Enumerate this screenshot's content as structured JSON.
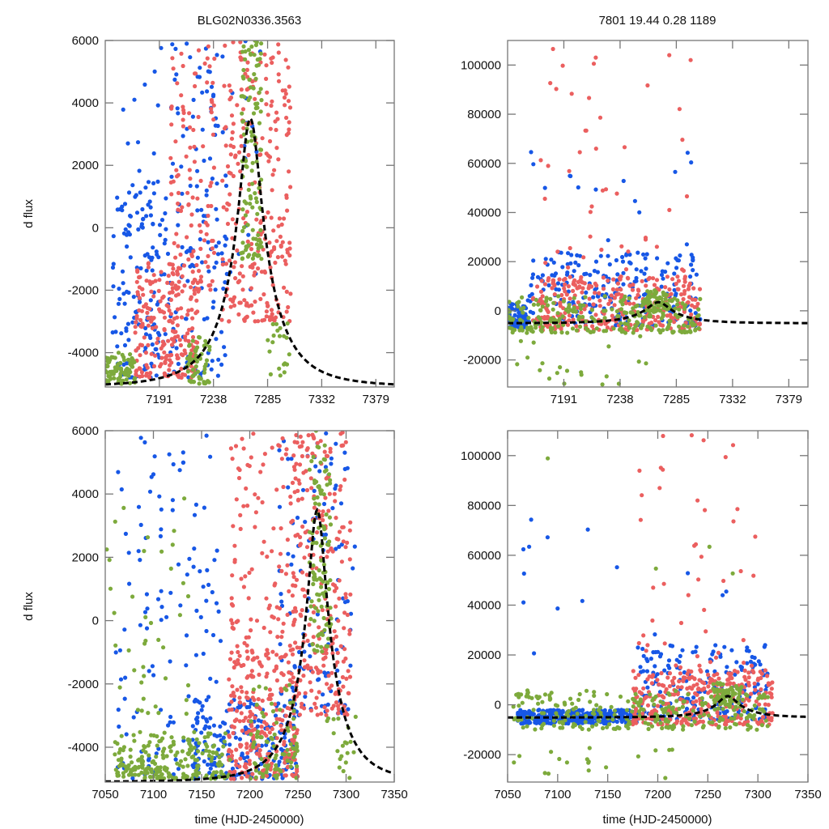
{
  "figure": {
    "title_left": "BLG02N0336.3563",
    "title_right": "7801  19.44  0.28  1189",
    "colors": {
      "blue": "#1757e6",
      "red": "#eb5f5f",
      "green": "#7daa3c",
      "model": "#000000",
      "frame": "#777777"
    }
  },
  "chart_data": [
    {
      "id": "top-left",
      "type": "scatter",
      "title": "BLG02N0336.3563",
      "xlabel": "",
      "ylabel": "d flux",
      "xlim": [
        7144,
        7395
      ],
      "ylim": [
        -5100,
        6000
      ],
      "xticks": [
        7191,
        7238,
        7285,
        7332,
        7379
      ],
      "xtick_labels": [
        "7191",
        "7238",
        "7285",
        "7332",
        "7379"
      ],
      "yticks": [
        -4000,
        -2000,
        0,
        2000,
        4000,
        6000
      ],
      "ytick_labels": [
        "-4000",
        "-2000",
        "0",
        "2000",
        "4000",
        "6000"
      ],
      "grid": false,
      "legend": "none",
      "series": [
        {
          "name": "blue",
          "clusters": [
            [
              7150,
              7200,
              -4800,
              1500,
              140
            ],
            [
              7200,
              7250,
              -4800,
              6000,
              110
            ],
            [
              7150,
              7280,
              -2000,
              6000,
              60
            ]
          ]
        },
        {
          "name": "red",
          "clusters": [
            [
              7170,
              7225,
              -4800,
              -1000,
              220
            ],
            [
              7200,
              7240,
              -2000,
              6000,
              120
            ],
            [
              7245,
              7305,
              -3000,
              6000,
              260
            ]
          ]
        },
        {
          "name": "green",
          "clusters": [
            [
              7144,
              7170,
              -5000,
              -4000,
              80
            ],
            [
              7215,
              7235,
              -5000,
              -3500,
              60
            ],
            [
              7262,
              7280,
              -1000,
              6000,
              120
            ],
            [
              7285,
              7305,
              -4800,
              -3000,
              20
            ]
          ]
        }
      ],
      "model_curve": {
        "t0": 7270,
        "peak": 3500,
        "baseline": -5100,
        "width": 18
      }
    },
    {
      "id": "top-right",
      "type": "scatter",
      "title": "7801  19.44  0.28  1189",
      "xlabel": "",
      "ylabel": "",
      "xlim": [
        7144,
        7395
      ],
      "ylim": [
        -31000,
        110000
      ],
      "xticks": [
        7191,
        7238,
        7285,
        7332,
        7379
      ],
      "xtick_labels": [
        "7191",
        "7238",
        "7285",
        "7332",
        "7379"
      ],
      "yticks": [
        -20000,
        0,
        20000,
        40000,
        60000,
        80000,
        100000
      ],
      "ytick_labels": [
        "-20000",
        "0",
        "20000",
        "40000",
        "60000",
        "80000",
        "100000"
      ],
      "grid": false,
      "legend": "none",
      "series": [
        {
          "name": "blue",
          "clusters": [
            [
              7144,
              7160,
              -7000,
              3000,
              90
            ],
            [
              7160,
              7305,
              -6000,
              24000,
              220
            ],
            [
              7160,
              7305,
              20000,
              70000,
              18
            ]
          ]
        },
        {
          "name": "red",
          "clusters": [
            [
              7165,
              7305,
              -8000,
              14000,
              320
            ],
            [
              7170,
              7300,
              15000,
              110000,
              45
            ]
          ]
        },
        {
          "name": "green",
          "clusters": [
            [
              7144,
              7305,
              -9000,
              6000,
              240
            ],
            [
              7150,
              7260,
              -30000,
              -10000,
              20
            ],
            [
              7258,
              7280,
              0,
              9000,
              60
            ]
          ]
        }
      ],
      "model_curve": {
        "t0": 7270,
        "peak": 3500,
        "baseline": -5100,
        "width": 18
      }
    },
    {
      "id": "bottom-left",
      "type": "scatter",
      "title": "",
      "xlabel": "time (HJD-2450000)",
      "ylabel": "d flux",
      "xlim": [
        7050,
        7350
      ],
      "ylim": [
        -5100,
        6000
      ],
      "xticks": [
        7050,
        7100,
        7150,
        7200,
        7250,
        7300,
        7350
      ],
      "xtick_labels": [
        "7050",
        "7100",
        "7150",
        "7200",
        "7250",
        "7300",
        "7350"
      ],
      "yticks": [
        -4000,
        -2000,
        0,
        2000,
        4000,
        6000
      ],
      "ytick_labels": [
        "-4000",
        "-2000",
        "0",
        "2000",
        "4000",
        "6000"
      ],
      "grid": false,
      "legend": "none",
      "series": [
        {
          "name": "blue",
          "clusters": [
            [
              7060,
              7170,
              -5000,
              6000,
              120
            ],
            [
              7140,
              7250,
              -5000,
              -2500,
              200
            ],
            [
              7230,
              7310,
              -3000,
              6000,
              110
            ]
          ]
        },
        {
          "name": "red",
          "clusters": [
            [
              7178,
              7250,
              -5000,
              -1000,
              260
            ],
            [
              7180,
              7250,
              -1000,
              6000,
              120
            ],
            [
              7245,
              7305,
              -3000,
              6000,
              240
            ]
          ]
        },
        {
          "name": "green",
          "clusters": [
            [
              7060,
              7180,
              -5000,
              -3500,
              220
            ],
            [
              7050,
              7140,
              -3000,
              4000,
              40
            ],
            [
              7200,
              7250,
              -5000,
              -2000,
              80
            ],
            [
              7262,
              7285,
              -1000,
              6000,
              110
            ],
            [
              7280,
              7310,
              -5000,
              -3000,
              20
            ]
          ]
        }
      ],
      "model_curve": {
        "t0": 7270,
        "peak": 3500,
        "baseline": -5100,
        "width": 18
      }
    },
    {
      "id": "bottom-right",
      "type": "scatter",
      "title": "",
      "xlabel": "time (HJD-2450000)",
      "ylabel": "",
      "xlim": [
        7050,
        7350
      ],
      "ylim": [
        -31000,
        110000
      ],
      "xticks": [
        7050,
        7100,
        7150,
        7200,
        7250,
        7300,
        7350
      ],
      "xtick_labels": [
        "7050",
        "7100",
        "7150",
        "7200",
        "7250",
        "7300",
        "7350"
      ],
      "yticks": [
        -20000,
        0,
        20000,
        40000,
        60000,
        80000,
        100000
      ],
      "ytick_labels": [
        "-20000",
        "0",
        "20000",
        "40000",
        "60000",
        "80000",
        "100000"
      ],
      "grid": false,
      "legend": "none",
      "series": [
        {
          "name": "blue",
          "clusters": [
            [
              7060,
              7180,
              -7500,
              -2000,
              320
            ],
            [
              7180,
              7310,
              -6000,
              24000,
              200
            ],
            [
              7060,
              7310,
              20000,
              82000,
              16
            ]
          ]
        },
        {
          "name": "red",
          "clusters": [
            [
              7175,
              7315,
              -8000,
              14000,
              320
            ],
            [
              7180,
              7300,
              15000,
              110000,
              45
            ]
          ]
        },
        {
          "name": "green",
          "clusters": [
            [
              7055,
              7310,
              -10000,
              6000,
              260
            ],
            [
              7055,
              7220,
              -30000,
              -12000,
              18
            ],
            [
              7255,
              7285,
              0,
              9000,
              60
            ],
            [
              7070,
              7280,
              40000,
              100000,
              4
            ]
          ]
        }
      ],
      "model_curve": {
        "t0": 7270,
        "peak": 3500,
        "baseline": -5100,
        "width": 18
      }
    }
  ]
}
